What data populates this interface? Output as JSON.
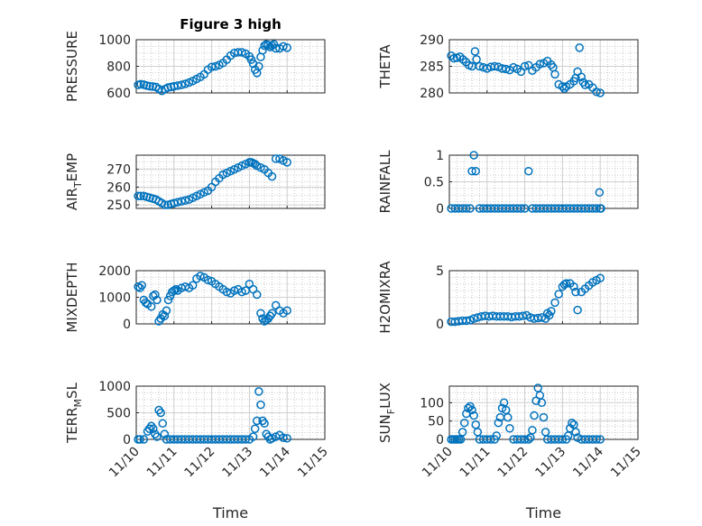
{
  "figure": {
    "marker_color": "#0072bd",
    "x_tick_labels": [
      "11/10",
      "11/11",
      "11/12",
      "11/13",
      "11/14",
      "11/15"
    ]
  },
  "chart_data": [
    {
      "type": "scatter",
      "title": "Figure 3 high",
      "ylabel_main": "PRESSURE",
      "ylabel_sub": "",
      "ylabel_tail": "",
      "xlabel": "",
      "xlim": [
        0,
        5
      ],
      "ylim": [
        600,
        1000
      ],
      "yticks": [
        600,
        800,
        1000
      ],
      "ytick_labels": [
        "600",
        "800",
        "1000"
      ],
      "x": [
        0.05,
        0.12,
        0.2,
        0.28,
        0.36,
        0.44,
        0.52,
        0.6,
        0.68,
        0.76,
        0.84,
        0.92,
        1.0,
        1.1,
        1.2,
        1.3,
        1.4,
        1.5,
        1.6,
        1.7,
        1.8,
        1.9,
        2.0,
        2.1,
        2.2,
        2.3,
        2.4,
        2.5,
        2.6,
        2.7,
        2.8,
        2.9,
        3.0,
        3.05,
        3.1,
        3.15,
        3.2,
        3.25,
        3.3,
        3.35,
        3.4,
        3.45,
        3.5,
        3.55,
        3.6,
        3.65,
        3.7,
        3.8,
        3.9,
        4.0
      ],
      "y": [
        660,
        665,
        662,
        655,
        650,
        648,
        645,
        630,
        615,
        628,
        640,
        645,
        650,
        655,
        660,
        668,
        678,
        690,
        705,
        720,
        740,
        775,
        795,
        800,
        810,
        825,
        850,
        880,
        900,
        905,
        905,
        895,
        875,
        850,
        820,
        775,
        750,
        800,
        870,
        920,
        955,
        965,
        960,
        945,
        955,
        965,
        935,
        935,
        950,
        940
      ]
    },
    {
      "type": "scatter",
      "title": "",
      "ylabel_main": "THETA",
      "ylabel_sub": "",
      "ylabel_tail": "",
      "xlabel": "",
      "xlim": [
        0,
        5
      ],
      "ylim": [
        280,
        290
      ],
      "yticks": [
        280,
        285,
        290
      ],
      "ytick_labels": [
        "280",
        "285",
        "290"
      ],
      "x": [
        0.05,
        0.12,
        0.2,
        0.28,
        0.36,
        0.44,
        0.52,
        0.6,
        0.68,
        0.72,
        0.8,
        0.9,
        1.0,
        1.1,
        1.2,
        1.3,
        1.4,
        1.5,
        1.6,
        1.7,
        1.8,
        1.9,
        2.0,
        2.1,
        2.2,
        2.3,
        2.4,
        2.5,
        2.6,
        2.7,
        2.75,
        2.8,
        2.9,
        3.0,
        3.05,
        3.1,
        3.2,
        3.3,
        3.35,
        3.4,
        3.45,
        3.5,
        3.55,
        3.6,
        3.7,
        3.8,
        3.9,
        4.0
      ],
      "y": [
        287,
        286.5,
        286.6,
        286.8,
        286.3,
        285.8,
        285.2,
        285.0,
        287.8,
        286.3,
        285.0,
        284.8,
        284.6,
        284.9,
        285.0,
        284.9,
        284.6,
        284.5,
        284.3,
        284.8,
        284.5,
        284.0,
        285.0,
        285.2,
        284.2,
        284.8,
        285.4,
        285.6,
        286.0,
        285.3,
        284.8,
        283.5,
        281.6,
        281.2,
        280.8,
        281.2,
        281.6,
        282.2,
        282.8,
        284.0,
        288.5,
        283.0,
        282.0,
        281.5,
        281.6,
        281.0,
        280.2,
        280.0
      ]
    },
    {
      "type": "scatter",
      "title": "",
      "ylabel_main": "AIR",
      "ylabel_sub": "T",
      "ylabel_tail": "EMP",
      "xlabel": "",
      "xlim": [
        0,
        5
      ],
      "ylim": [
        248,
        278
      ],
      "yticks": [
        250,
        260,
        270
      ],
      "ytick_labels": [
        "250",
        "260",
        "270"
      ],
      "x": [
        0.05,
        0.12,
        0.2,
        0.28,
        0.36,
        0.44,
        0.52,
        0.6,
        0.68,
        0.76,
        0.84,
        0.92,
        1.0,
        1.1,
        1.2,
        1.3,
        1.4,
        1.5,
        1.6,
        1.7,
        1.8,
        1.9,
        2.0,
        2.1,
        2.2,
        2.3,
        2.4,
        2.5,
        2.6,
        2.7,
        2.8,
        2.9,
        3.0,
        3.05,
        3.1,
        3.15,
        3.2,
        3.3,
        3.4,
        3.5,
        3.6,
        3.7,
        3.8,
        3.9,
        4.0
      ],
      "y": [
        255,
        255,
        255,
        254.5,
        254,
        253.5,
        253,
        252,
        251,
        250,
        250,
        250.5,
        251,
        251.5,
        252,
        252.5,
        253,
        254,
        255,
        256,
        257,
        258,
        260,
        263,
        265,
        267,
        268,
        269,
        270,
        271,
        272,
        273,
        274,
        274,
        273.5,
        273,
        272,
        271,
        270,
        268,
        266,
        276,
        276,
        275,
        274
      ]
    },
    {
      "type": "scatter",
      "title": "",
      "ylabel_main": "RAINFALL",
      "ylabel_sub": "",
      "ylabel_tail": "",
      "xlabel": "",
      "xlim": [
        0,
        5
      ],
      "ylim": [
        0,
        1
      ],
      "yticks": [
        0,
        0.5,
        1
      ],
      "ytick_labels": [
        "0",
        "0.5",
        "1"
      ],
      "x": [
        0.05,
        0.15,
        0.25,
        0.35,
        0.45,
        0.55,
        0.6,
        0.65,
        0.7,
        0.8,
        0.9,
        1.0,
        1.1,
        1.2,
        1.3,
        1.4,
        1.5,
        1.6,
        1.7,
        1.8,
        1.9,
        2.0,
        2.1,
        2.2,
        2.3,
        2.4,
        2.5,
        2.6,
        2.7,
        2.8,
        2.9,
        3.0,
        3.1,
        3.2,
        3.3,
        3.4,
        3.5,
        3.6,
        3.7,
        3.8,
        3.9,
        3.98,
        4.0,
        4.02
      ],
      "y": [
        0,
        0,
        0,
        0,
        0,
        0,
        0.7,
        1.0,
        0.7,
        0,
        0,
        0,
        0,
        0,
        0,
        0,
        0,
        0,
        0,
        0,
        0,
        0,
        0.7,
        0,
        0,
        0,
        0,
        0,
        0,
        0,
        0,
        0,
        0,
        0,
        0,
        0,
        0,
        0,
        0,
        0,
        0,
        0.3,
        0,
        0
      ]
    },
    {
      "type": "scatter",
      "title": "",
      "ylabel_main": "MIXDEPTH",
      "ylabel_sub": "",
      "ylabel_tail": "",
      "xlabel": "",
      "xlim": [
        0,
        5
      ],
      "ylim": [
        0,
        2000
      ],
      "yticks": [
        0,
        1000,
        2000
      ],
      "ytick_labels": [
        "0",
        "1000",
        "2000"
      ],
      "x": [
        0.05,
        0.1,
        0.15,
        0.2,
        0.25,
        0.3,
        0.4,
        0.45,
        0.5,
        0.55,
        0.6,
        0.65,
        0.7,
        0.75,
        0.8,
        0.85,
        0.9,
        0.95,
        1.0,
        1.05,
        1.1,
        1.2,
        1.3,
        1.4,
        1.5,
        1.6,
        1.7,
        1.8,
        1.9,
        2.0,
        2.1,
        2.2,
        2.3,
        2.4,
        2.5,
        2.6,
        2.7,
        2.8,
        2.9,
        3.0,
        3.1,
        3.2,
        3.3,
        3.35,
        3.4,
        3.45,
        3.5,
        3.55,
        3.6,
        3.7,
        3.8,
        3.9,
        4.0
      ],
      "y": [
        1400,
        1350,
        1450,
        900,
        800,
        750,
        650,
        1050,
        1100,
        900,
        100,
        200,
        350,
        300,
        500,
        900,
        1050,
        1200,
        1250,
        1300,
        1250,
        1350,
        1400,
        1350,
        1450,
        1700,
        1800,
        1750,
        1650,
        1600,
        1500,
        1400,
        1300,
        1200,
        1150,
        1250,
        1300,
        1200,
        1250,
        1500,
        1300,
        1100,
        400,
        200,
        100,
        150,
        200,
        300,
        400,
        700,
        500,
        400,
        500
      ]
    },
    {
      "type": "scatter",
      "title": "",
      "ylabel_main": "H2OMIXRA",
      "ylabel_sub": "",
      "ylabel_tail": "",
      "xlabel": "",
      "xlim": [
        0,
        5
      ],
      "ylim": [
        0,
        5
      ],
      "yticks": [
        0,
        5
      ],
      "ytick_labels": [
        "0",
        "5"
      ],
      "x": [
        0.05,
        0.15,
        0.25,
        0.35,
        0.45,
        0.55,
        0.65,
        0.75,
        0.85,
        0.95,
        1.05,
        1.15,
        1.25,
        1.35,
        1.45,
        1.55,
        1.65,
        1.75,
        1.85,
        1.95,
        2.05,
        2.15,
        2.25,
        2.35,
        2.45,
        2.55,
        2.6,
        2.65,
        2.7,
        2.8,
        2.9,
        3.0,
        3.05,
        3.1,
        3.2,
        3.3,
        3.35,
        3.4,
        3.5,
        3.6,
        3.7,
        3.8,
        3.9,
        4.0
      ],
      "y": [
        0.2,
        0.2,
        0.25,
        0.3,
        0.3,
        0.35,
        0.5,
        0.6,
        0.7,
        0.75,
        0.7,
        0.75,
        0.7,
        0.7,
        0.7,
        0.7,
        0.65,
        0.7,
        0.7,
        0.75,
        0.8,
        0.6,
        0.5,
        0.55,
        0.6,
        0.5,
        1.0,
        0.8,
        1.2,
        2.0,
        2.8,
        3.5,
        3.7,
        3.8,
        3.8,
        3.5,
        3.0,
        1.3,
        3.0,
        3.3,
        3.6,
        3.9,
        4.1,
        4.3
      ]
    },
    {
      "type": "scatter",
      "title": "",
      "ylabel_main": "TERR",
      "ylabel_sub": "M",
      "ylabel_tail": "SL",
      "xlabel": "Time",
      "xlim": [
        0,
        5
      ],
      "ylim": [
        0,
        1000
      ],
      "yticks": [
        0,
        500,
        1000
      ],
      "ytick_labels": [
        "0",
        "500",
        "1000"
      ],
      "x": [
        0.05,
        0.1,
        0.2,
        0.3,
        0.35,
        0.4,
        0.45,
        0.5,
        0.55,
        0.6,
        0.65,
        0.7,
        0.75,
        0.8,
        0.9,
        1.0,
        1.1,
        1.2,
        1.3,
        1.4,
        1.5,
        1.6,
        1.7,
        1.8,
        1.9,
        2.0,
        2.1,
        2.2,
        2.3,
        2.4,
        2.5,
        2.6,
        2.7,
        2.8,
        2.9,
        3.0,
        3.1,
        3.15,
        3.2,
        3.25,
        3.3,
        3.35,
        3.4,
        3.45,
        3.5,
        3.55,
        3.6,
        3.7,
        3.8,
        3.9,
        4.0
      ],
      "y": [
        0,
        0,
        0,
        150,
        200,
        250,
        200,
        100,
        50,
        550,
        500,
        300,
        100,
        0,
        0,
        0,
        0,
        0,
        0,
        0,
        0,
        0,
        0,
        0,
        0,
        0,
        0,
        0,
        0,
        0,
        0,
        0,
        0,
        0,
        0,
        0,
        50,
        200,
        350,
        900,
        650,
        350,
        300,
        100,
        50,
        0,
        20,
        50,
        80,
        30,
        20
      ]
    },
    {
      "type": "scatter",
      "title": "",
      "ylabel_main": "SUN",
      "ylabel_sub": "F",
      "ylabel_tail": "LUX",
      "xlabel": "Time",
      "xlim": [
        0,
        5
      ],
      "ylim": [
        0,
        145
      ],
      "yticks": [
        0,
        50,
        100
      ],
      "ytick_labels": [
        "0",
        "50",
        "100"
      ],
      "x": [
        0.05,
        0.1,
        0.15,
        0.2,
        0.25,
        0.3,
        0.35,
        0.4,
        0.45,
        0.5,
        0.55,
        0.6,
        0.65,
        0.7,
        0.75,
        0.8,
        0.9,
        1.0,
        1.1,
        1.2,
        1.25,
        1.3,
        1.35,
        1.4,
        1.45,
        1.5,
        1.55,
        1.6,
        1.7,
        1.8,
        1.9,
        2.0,
        2.1,
        2.15,
        2.2,
        2.25,
        2.3,
        2.35,
        2.4,
        2.45,
        2.5,
        2.55,
        2.6,
        2.7,
        2.8,
        2.9,
        3.0,
        3.1,
        3.15,
        3.2,
        3.25,
        3.3,
        3.35,
        3.4,
        3.5,
        3.6,
        3.7,
        3.8,
        3.9,
        4.0
      ],
      "y": [
        0,
        0,
        0,
        0,
        0,
        0,
        20,
        45,
        70,
        85,
        90,
        80,
        65,
        40,
        20,
        0,
        0,
        0,
        0,
        0,
        10,
        45,
        60,
        85,
        100,
        80,
        60,
        30,
        0,
        0,
        0,
        0,
        0,
        5,
        25,
        65,
        105,
        140,
        120,
        100,
        60,
        20,
        0,
        0,
        0,
        0,
        0,
        0,
        10,
        30,
        45,
        40,
        20,
        5,
        0,
        0,
        0,
        0,
        0,
        0
      ]
    }
  ]
}
